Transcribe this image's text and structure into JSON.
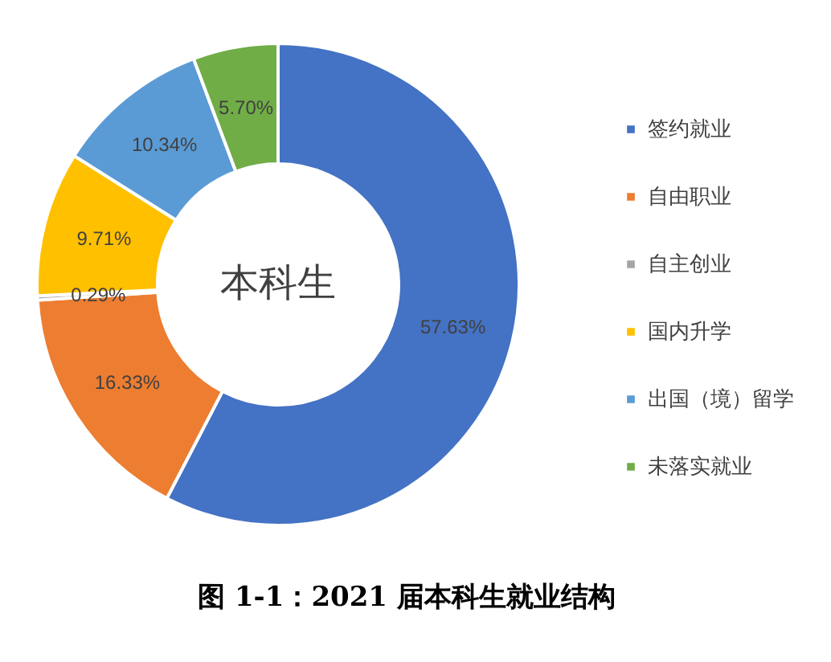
{
  "chart_data": {
    "type": "donut",
    "title": "图 1-1：2021 届本科生就业结构",
    "annotations": [
      "本科生"
    ],
    "categories": [
      "签约就业",
      "自由职业",
      "自主创业",
      "国内升学",
      "出国（境）留学",
      "未落实就业"
    ],
    "values": [
      57.63,
      16.33,
      0.29,
      9.71,
      10.34,
      5.7
    ],
    "colors": [
      "#4472c4",
      "#ed7d31",
      "#a5a5a5",
      "#ffc000",
      "#5b9bd5",
      "#70ad47"
    ],
    "value_labels": [
      "57.63%",
      "16.33%",
      "0.29%",
      "9.71%",
      "10.34%",
      "5.70%"
    ],
    "legend": "right"
  }
}
